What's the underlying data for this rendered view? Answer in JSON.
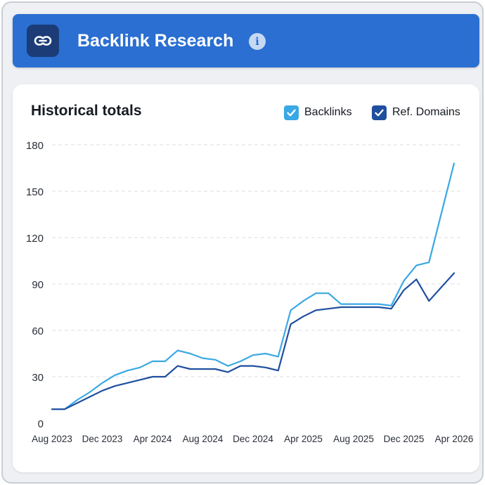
{
  "header": {
    "title": "Backlink Research",
    "info_icon": "i",
    "icon": "link-icon",
    "color": "#2a6fd1"
  },
  "chart_data": {
    "type": "line",
    "title": "Historical totals",
    "xlabel": "",
    "ylabel": "",
    "ylim": [
      0,
      180
    ],
    "yticks": [
      "0",
      "30",
      "60",
      "90",
      "120",
      "150",
      "180"
    ],
    "xticks": [
      "Aug 2023",
      "Dec 2023",
      "Apr 2024",
      "Aug 2024",
      "Dec 2024",
      "Apr 2025",
      "Aug 2025",
      "Dec 2025",
      "Apr 2026"
    ],
    "grid": true,
    "legend_position": "top-right",
    "x": [
      "2023-08",
      "2023-09",
      "2023-10",
      "2023-11",
      "2023-12",
      "2024-01",
      "2024-02",
      "2024-03",
      "2024-04",
      "2024-05",
      "2024-06",
      "2024-07",
      "2024-08",
      "2024-09",
      "2024-10",
      "2024-11",
      "2024-12",
      "2025-01",
      "2025-02",
      "2025-03",
      "2025-04",
      "2025-05",
      "2025-06",
      "2025-07",
      "2025-08",
      "2025-09",
      "2025-10",
      "2025-11",
      "2025-12",
      "2026-01",
      "2026-02",
      "2026-03",
      "2026-04"
    ],
    "series": [
      {
        "name": "Backlinks",
        "color": "#3aa8e4",
        "values": [
          9,
          9,
          15,
          20,
          26,
          31,
          34,
          36,
          40,
          40,
          47,
          45,
          42,
          41,
          37,
          40,
          44,
          45,
          43,
          73,
          79,
          84,
          84,
          77,
          77,
          77,
          77,
          76,
          92,
          102,
          104,
          136,
          168
        ]
      },
      {
        "name": "Ref. Domains",
        "color": "#1f4f9e",
        "values": [
          9,
          9,
          13,
          17,
          21,
          24,
          26,
          28,
          30,
          30,
          37,
          35,
          35,
          35,
          33,
          37,
          37,
          36,
          34,
          64,
          69,
          73,
          74,
          75,
          75,
          75,
          75,
          74,
          86,
          93,
          79,
          88,
          97
        ]
      }
    ]
  }
}
